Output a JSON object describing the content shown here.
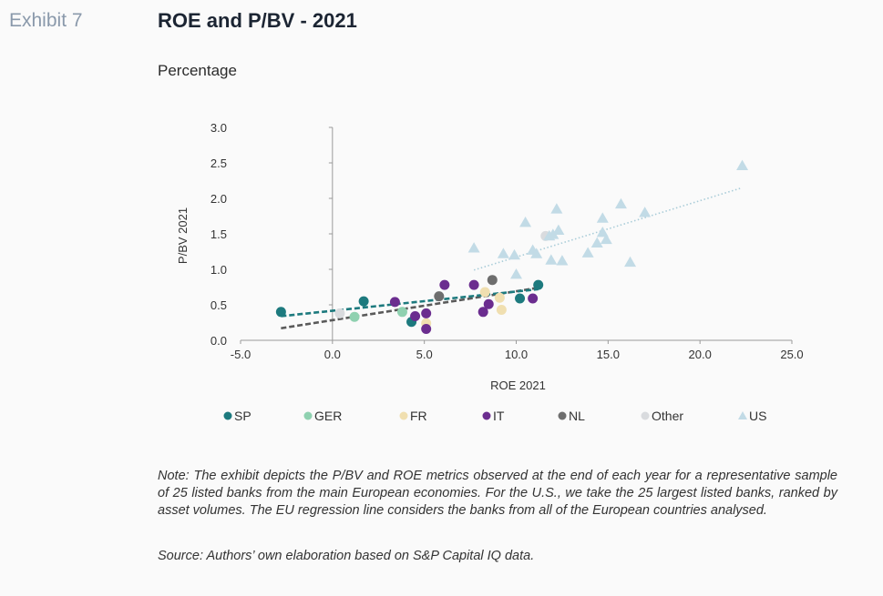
{
  "header": {
    "exhibit": "Exhibit 7",
    "title": "ROE and P/BV - 2021",
    "subtitle": "Percentage"
  },
  "footer": {
    "note": "Note: The exhibit depicts the P/BV and ROE metrics observed at the end of each year for a representative sample of 25 listed banks from the main European economies. For the U.S., we take the 25 largest listed banks, ranked by asset volumes. The EU regression line considers the banks from all of the European countries analysed.",
    "source": "Source: Authors’ own elaboration based on S&P Capital IQ data."
  },
  "chart_data": {
    "type": "scatter",
    "xlabel": "ROE 2021",
    "ylabel": "P/BV 2021",
    "xlim": [
      -5,
      25
    ],
    "ylim": [
      0,
      3
    ],
    "xticks": [
      "-5.0",
      "0.0",
      "5.0",
      "10.0",
      "15.0",
      "20.0",
      "25.0"
    ],
    "xtick_values": [
      -5,
      0,
      5,
      10,
      15,
      20,
      25
    ],
    "yticks": [
      "0.0",
      "0.5",
      "1.0",
      "1.5",
      "2.0",
      "2.5",
      "3.0"
    ],
    "ytick_values": [
      0,
      0.5,
      1,
      1.5,
      2,
      2.5,
      3
    ],
    "grid": false,
    "legend_position": "bottom",
    "series": [
      {
        "name": "SP",
        "color": "#1d7a7e",
        "marker": "circle",
        "points": [
          [
            -2.8,
            0.4
          ],
          [
            1.7,
            0.55
          ],
          [
            4.3,
            0.26
          ],
          [
            10.2,
            0.59
          ],
          [
            11.2,
            0.78
          ]
        ]
      },
      {
        "name": "GER",
        "color": "#8fd1b0",
        "marker": "circle",
        "points": [
          [
            1.2,
            0.33
          ],
          [
            3.8,
            0.4
          ]
        ]
      },
      {
        "name": "FR",
        "color": "#f0dfb0",
        "marker": "circle",
        "points": [
          [
            5.1,
            0.24
          ],
          [
            8.3,
            0.68
          ],
          [
            9.1,
            0.6
          ],
          [
            9.2,
            0.43
          ]
        ]
      },
      {
        "name": "IT",
        "color": "#6b2d8f",
        "marker": "circle",
        "points": [
          [
            3.4,
            0.54
          ],
          [
            4.5,
            0.34
          ],
          [
            5.1,
            0.38
          ],
          [
            5.1,
            0.16
          ],
          [
            6.1,
            0.78
          ],
          [
            7.7,
            0.78
          ],
          [
            8.2,
            0.4
          ],
          [
            8.5,
            0.51
          ],
          [
            10.9,
            0.59
          ]
        ]
      },
      {
        "name": "NL",
        "color": "#6e6e6e",
        "marker": "circle",
        "points": [
          [
            5.8,
            0.62
          ],
          [
            8.7,
            0.85
          ]
        ]
      },
      {
        "name": "Other",
        "color": "#d9dbde",
        "marker": "circle",
        "points": [
          [
            0.4,
            0.38
          ],
          [
            11.6,
            1.47
          ]
        ]
      },
      {
        "name": "US",
        "color": "#c2dbe6",
        "marker": "triangle",
        "points": [
          [
            7.7,
            1.3
          ],
          [
            9.3,
            1.22
          ],
          [
            9.9,
            1.2
          ],
          [
            10.0,
            0.93
          ],
          [
            10.5,
            1.66
          ],
          [
            10.9,
            1.27
          ],
          [
            11.1,
            1.22
          ],
          [
            11.8,
            1.47
          ],
          [
            11.9,
            1.13
          ],
          [
            12.0,
            1.49
          ],
          [
            12.2,
            1.85
          ],
          [
            12.3,
            1.55
          ],
          [
            12.5,
            1.12
          ],
          [
            13.9,
            1.23
          ],
          [
            14.4,
            1.37
          ],
          [
            14.7,
            1.72
          ],
          [
            14.7,
            1.52
          ],
          [
            14.9,
            1.42
          ],
          [
            15.7,
            1.92
          ],
          [
            16.2,
            1.1
          ],
          [
            17.0,
            1.8
          ],
          [
            22.3,
            2.46
          ]
        ]
      }
    ],
    "trendlines": [
      {
        "name": "EU regression",
        "color": "#5a5a5a",
        "style": "dashed",
        "from": [
          -2.8,
          0.17
        ],
        "to": [
          11.2,
          0.74
        ]
      },
      {
        "name": "SP trend",
        "color": "#1d7a7e",
        "style": "dashed",
        "from": [
          -2.8,
          0.34
        ],
        "to": [
          11.2,
          0.72
        ]
      },
      {
        "name": "US trend",
        "color": "#a9ccd8",
        "style": "dotted",
        "from": [
          7.7,
          0.99
        ],
        "to": [
          22.3,
          2.15
        ]
      }
    ]
  }
}
